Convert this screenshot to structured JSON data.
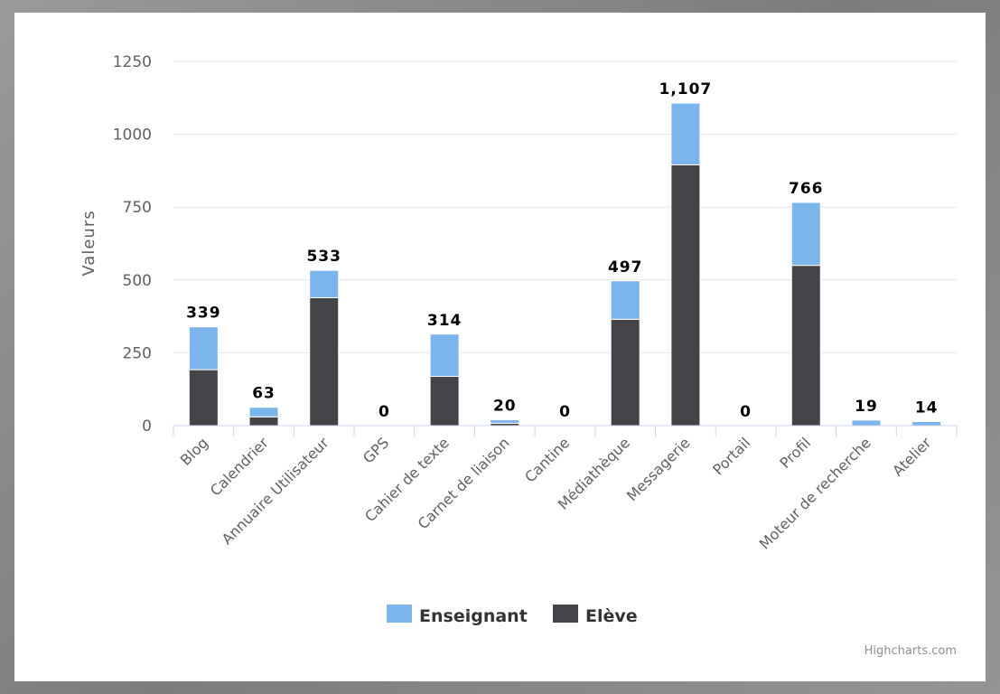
{
  "chart_data": {
    "type": "bar",
    "stacked": true,
    "title": "",
    "xlabel": "",
    "ylabel": "Valeurs",
    "ylim": [
      0,
      1250
    ],
    "yticks": [
      0,
      250,
      500,
      750,
      1000,
      1250
    ],
    "grid": true,
    "legend_position": "bottom-center",
    "categories": [
      "Blog",
      "Calendrier",
      "Annuaire Utilisateur",
      "GPS",
      "Cahier de texte",
      "Carnet de liaison",
      "Cantine",
      "Médiathèque",
      "Messagerie",
      "Portail",
      "Profil",
      "Moteur de recherche",
      "Atelier"
    ],
    "series": [
      {
        "name": "Enseignant",
        "color": "#7cb5ec",
        "values": [
          147,
          33,
          94,
          0,
          145,
          12,
          0,
          132,
          212,
          0,
          216,
          19,
          14
        ]
      },
      {
        "name": "Elève",
        "color": "#434348",
        "values": [
          192,
          30,
          439,
          0,
          169,
          8,
          0,
          365,
          895,
          0,
          550,
          0,
          0
        ]
      }
    ],
    "totals": [
      "339",
      "63",
      "533",
      "0",
      "314",
      "20",
      "0",
      "497",
      "1,107",
      "0",
      "766",
      "19",
      "14"
    ],
    "credits": "Highcharts.com"
  }
}
